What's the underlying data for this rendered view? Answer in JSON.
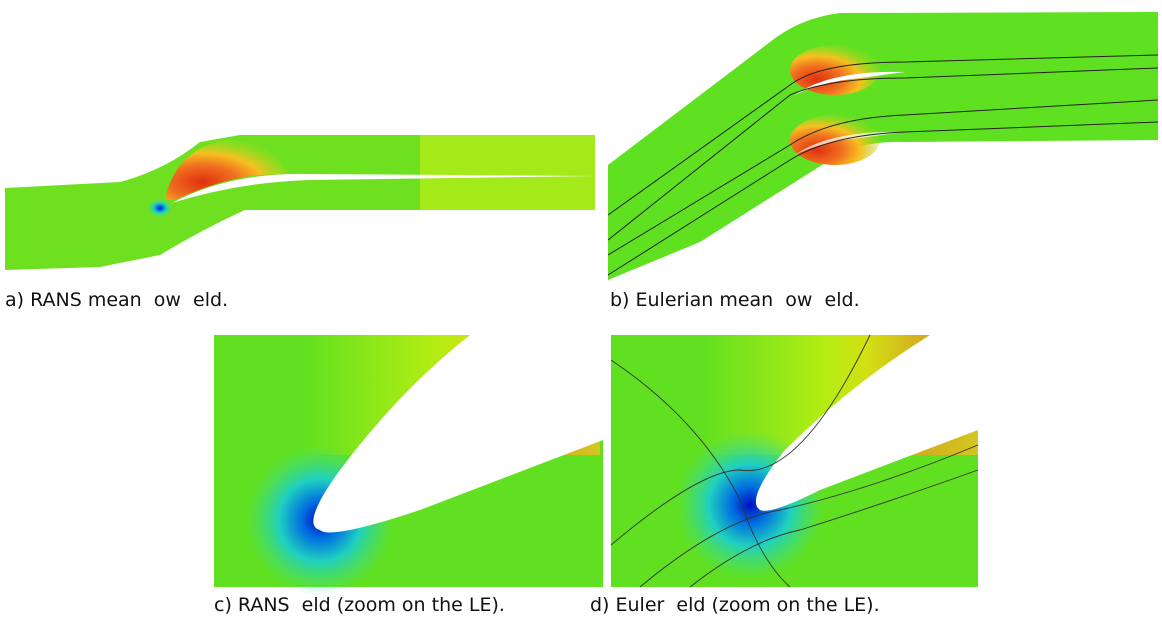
{
  "captions": {
    "a": "a) RANS mean  ow  eld.",
    "b": "b) Eulerian mean  ow  eld.",
    "c": "c) RANS  eld (zoom on the LE).",
    "d": "d) Euler  eld (zoom on the LE)."
  }
}
